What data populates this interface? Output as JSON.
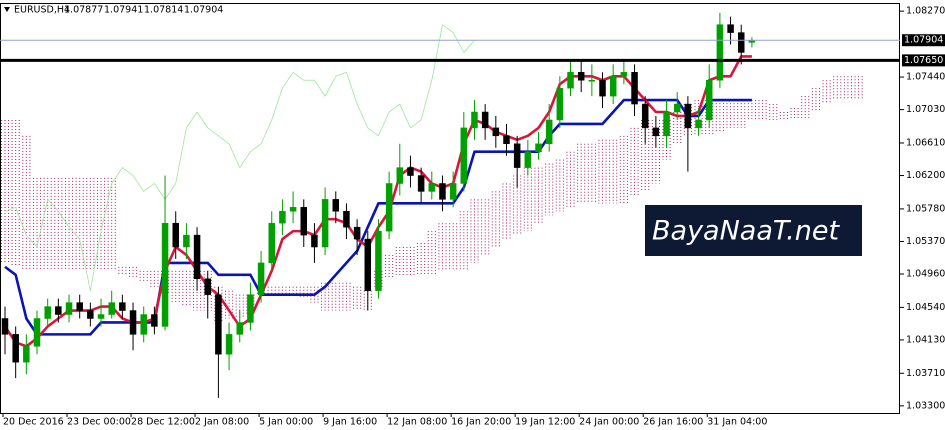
{
  "chart_data": {
    "type": "candlestick",
    "title": "EURUSD,H4",
    "categories": [
      "20 Dec 2016",
      null,
      null,
      null,
      null,
      null,
      "23 Dec 00:00",
      null,
      null,
      null,
      null,
      null,
      "28 Dec 12:00",
      null,
      null,
      null,
      null,
      null,
      "2 Jan 08:00",
      null,
      null,
      null,
      null,
      null,
      "5 Jan 00:00",
      null,
      null,
      null,
      null,
      null,
      "9 Jan 16:00",
      null,
      null,
      null,
      null,
      null,
      "12 Jan 08:00",
      null,
      null,
      null,
      null,
      null,
      "16 Jan 20:00",
      null,
      null,
      null,
      null,
      null,
      "19 Jan 12:00",
      null,
      null,
      null,
      null,
      null,
      "24 Jan 00:00",
      null,
      null,
      null,
      null,
      null,
      "26 Jan 16:00",
      null,
      null,
      null,
      null,
      null,
      "31 Jan 04:00",
      null,
      null,
      null,
      null,
      null,
      null,
      null,
      null,
      null,
      null,
      null,
      null,
      null,
      null
    ],
    "open": [
      1.044,
      1.042,
      1.0385,
      1.0405,
      1.044,
      1.0455,
      1.0445,
      1.046,
      1.045,
      1.044,
      1.0445,
      1.046,
      1.045,
      1.042,
      1.0445,
      1.043,
      1.056,
      1.053,
      1.0545,
      1.049,
      1.047,
      1.0395,
      1.042,
      1.0435,
      1.047,
      1.051,
      1.056,
      1.0575,
      1.058,
      1.0545,
      1.053,
      1.059,
      1.0575,
      1.0555,
      1.054,
      1.0475,
      1.055,
      1.061,
      1.063,
      1.062,
      1.06,
      1.061,
      1.059,
      1.061,
      1.068,
      1.07,
      1.068,
      1.067,
      1.066,
      1.063,
      1.065,
      1.066,
      1.069,
      1.073,
      1.075,
      1.074,
      1.074,
      1.072,
      1.0745,
      1.075,
      1.071,
      1.068,
      1.067,
      1.07,
      1.071,
      1.068,
      1.069,
      1.074,
      1.081,
      1.08,
      1.07877,
      null,
      null,
      null,
      null,
      null,
      null,
      null,
      null,
      null,
      null
    ],
    "high": [
      1.0455,
      1.043,
      1.042,
      1.045,
      1.0465,
      1.0465,
      1.047,
      1.047,
      1.046,
      1.0465,
      1.0475,
      1.047,
      1.046,
      1.0455,
      1.0455,
      1.062,
      1.0575,
      1.056,
      1.0555,
      1.05,
      1.048,
      1.0435,
      1.045,
      1.0485,
      1.0525,
      1.0575,
      1.059,
      1.06,
      1.059,
      1.056,
      1.0605,
      1.06,
      1.0585,
      1.0565,
      1.055,
      1.0565,
      1.0625,
      1.066,
      1.0645,
      1.063,
      1.0625,
      1.062,
      1.0625,
      1.07,
      1.0715,
      1.071,
      1.0695,
      1.0685,
      1.067,
      1.0665,
      1.0675,
      1.071,
      1.0745,
      1.0765,
      1.0765,
      1.076,
      1.075,
      1.076,
      1.0765,
      1.076,
      1.072,
      1.0695,
      1.0715,
      1.0725,
      1.072,
      1.0705,
      1.076,
      1.0825,
      1.082,
      1.081,
      1.07941,
      null,
      null,
      null,
      null,
      null,
      null,
      null,
      null,
      null,
      null
    ],
    "low": [
      1.0395,
      1.0365,
      1.037,
      1.0395,
      1.043,
      1.0435,
      1.0435,
      1.044,
      1.043,
      1.043,
      1.044,
      1.044,
      1.04,
      1.041,
      1.042,
      1.0425,
      1.0515,
      1.0515,
      1.0475,
      1.044,
      1.034,
      1.0375,
      1.041,
      1.0425,
      1.046,
      1.05,
      1.0545,
      1.056,
      1.053,
      1.051,
      1.052,
      1.056,
      1.054,
      1.052,
      1.045,
      1.0465,
      1.054,
      1.0595,
      1.0605,
      1.0585,
      1.059,
      1.0575,
      1.058,
      1.06,
      1.0665,
      1.0665,
      1.0655,
      1.0645,
      1.0605,
      1.062,
      1.064,
      1.065,
      1.068,
      1.072,
      1.0725,
      1.072,
      1.0705,
      1.071,
      1.0735,
      1.0695,
      1.066,
      1.0655,
      1.0655,
      1.069,
      1.0625,
      1.067,
      1.068,
      1.073,
      1.0785,
      1.076,
      1.07814,
      null,
      null,
      null,
      null,
      null,
      null,
      null,
      null,
      null,
      null
    ],
    "close": [
      1.042,
      1.0385,
      1.0405,
      1.044,
      1.0455,
      1.0445,
      1.046,
      1.045,
      1.044,
      1.0445,
      1.046,
      1.045,
      1.042,
      1.0445,
      1.043,
      1.056,
      1.053,
      1.0545,
      1.049,
      1.047,
      1.0395,
      1.042,
      1.0435,
      1.047,
      1.051,
      1.056,
      1.0575,
      1.058,
      1.0545,
      1.053,
      1.059,
      1.0575,
      1.0555,
      1.054,
      1.0475,
      1.055,
      1.061,
      1.063,
      1.062,
      1.06,
      1.061,
      1.059,
      1.061,
      1.068,
      1.07,
      1.068,
      1.067,
      1.066,
      1.063,
      1.065,
      1.066,
      1.069,
      1.073,
      1.075,
      1.074,
      1.074,
      1.072,
      1.0745,
      1.075,
      1.071,
      1.068,
      1.067,
      1.07,
      1.071,
      1.068,
      1.069,
      1.074,
      1.081,
      1.08,
      1.0775,
      1.07904,
      null,
      null,
      null,
      null,
      null,
      null,
      null,
      null,
      null,
      null
    ],
    "up_color": "#00a000",
    "down_color": "#000000",
    "lines": [
      {
        "color": "#9be89b",
        "width": 0.8,
        "values": [
          1.0575,
          1.058,
          1.0545,
          1.053,
          1.059,
          1.0575,
          1.0555,
          1.054,
          1.0475,
          1.055,
          1.061,
          1.063,
          1.062,
          1.06,
          1.061,
          1.059,
          1.061,
          1.068,
          1.07,
          1.068,
          1.067,
          1.066,
          1.063,
          1.065,
          1.066,
          1.069,
          1.073,
          1.075,
          1.074,
          1.074,
          1.072,
          1.0745,
          1.075,
          1.071,
          1.068,
          1.067,
          1.07,
          1.071,
          1.068,
          1.069,
          1.074,
          1.081,
          1.08,
          1.0775,
          1.07904,
          null,
          null,
          null,
          null,
          null,
          null,
          null,
          null,
          null,
          null,
          null,
          null,
          null,
          null,
          null,
          null,
          null,
          null,
          null,
          null,
          null,
          null,
          null,
          null,
          null,
          null,
          null,
          null,
          null,
          null,
          null,
          null,
          null,
          null,
          null,
          null
        ]
      },
      {
        "color": "#0a14b4",
        "width": 2.6,
        "values": [
          1.0505,
          1.0495,
          1.044,
          1.042,
          1.042,
          1.042,
          1.042,
          1.042,
          1.042,
          1.0435,
          1.0435,
          1.0435,
          1.0435,
          1.0435,
          1.0435,
          1.051,
          1.051,
          1.051,
          1.051,
          1.051,
          1.0495,
          1.0495,
          1.0495,
          1.0495,
          1.047,
          1.047,
          1.047,
          1.047,
          1.047,
          1.047,
          1.048,
          1.0495,
          1.051,
          1.0525,
          1.0555,
          1.0585,
          1.0585,
          1.0585,
          1.0585,
          1.0585,
          1.0585,
          1.0585,
          1.0585,
          1.0605,
          1.065,
          1.065,
          1.065,
          1.065,
          1.065,
          1.065,
          1.065,
          1.067,
          1.0685,
          1.0685,
          1.0685,
          1.0685,
          1.0685,
          1.07,
          1.0715,
          1.0715,
          1.0715,
          1.0715,
          1.0715,
          1.0715,
          1.0695,
          1.0695,
          1.0715,
          1.0715,
          1.0715,
          1.0715,
          1.0715,
          null,
          null,
          null,
          null,
          null,
          null,
          null,
          null,
          null,
          null
        ]
      },
      {
        "color": "#dc143c",
        "width": 2.6,
        "values": [
          1.043,
          1.041,
          1.0405,
          1.0415,
          1.043,
          1.044,
          1.045,
          1.045,
          1.045,
          1.0455,
          1.0455,
          1.044,
          1.0435,
          1.0435,
          1.044,
          1.05,
          1.053,
          1.052,
          1.05,
          1.048,
          1.047,
          1.045,
          1.043,
          1.044,
          1.047,
          1.05,
          1.054,
          1.055,
          1.055,
          1.0545,
          1.0565,
          1.0565,
          1.056,
          1.054,
          1.053,
          1.0555,
          1.0575,
          1.062,
          1.063,
          1.0625,
          1.061,
          1.0605,
          1.061,
          1.066,
          1.069,
          1.0685,
          1.0675,
          1.067,
          1.0665,
          1.067,
          1.068,
          1.07,
          1.0735,
          1.0745,
          1.0745,
          1.0745,
          1.074,
          1.0745,
          1.0745,
          1.073,
          1.0715,
          1.07,
          1.07,
          1.0695,
          1.0695,
          1.07,
          1.074,
          1.0745,
          1.0745,
          1.077,
          1.077,
          null,
          null,
          null,
          null,
          null,
          null,
          null,
          null,
          null,
          null
        ]
      }
    ],
    "cloud": {
      "up_color": "#a0206e",
      "down_color": "#c2405a",
      "span_a": [
        1.069,
        1.069,
        1.067,
        1.0617,
        1.0617,
        1.0617,
        1.0617,
        1.0617,
        1.0617,
        1.0617,
        1.0617,
        1.0505,
        1.0505,
        1.05,
        1.05,
        1.05,
        1.05,
        1.05,
        1.05,
        1.05,
        1.048,
        1.0475,
        1.047,
        1.047,
        1.048,
        1.048,
        1.048,
        1.048,
        1.048,
        1.048,
        1.0485,
        1.0485,
        1.0485,
        1.048,
        1.0475,
        1.05,
        1.052,
        1.053,
        1.053,
        1.0535,
        1.055,
        1.056,
        1.056,
        1.0575,
        1.059,
        1.059,
        1.06,
        1.061,
        1.062,
        1.063,
        1.063,
        1.0635,
        1.064,
        1.065,
        1.066,
        1.066,
        1.0665,
        1.0665,
        1.067,
        1.068,
        1.069,
        1.069,
        1.069,
        1.07,
        1.071,
        1.0715,
        1.0715,
        1.0715,
        1.0715,
        1.0715,
        1.0715,
        1.0715,
        1.071,
        1.07,
        1.0705,
        1.072,
        1.073,
        1.074,
        1.0745,
        1.0745,
        1.0745
      ],
      "span_b": [
        1.051,
        1.0505,
        1.05,
        1.05,
        1.05,
        1.05,
        1.05,
        1.05,
        1.05,
        1.05,
        1.05,
        1.0495,
        1.049,
        1.0485,
        1.048,
        1.047,
        1.046,
        1.0455,
        1.045,
        1.045,
        1.0435,
        1.044,
        1.044,
        1.0445,
        1.047,
        1.047,
        1.047,
        1.047,
        1.0465,
        1.046,
        1.045,
        1.045,
        1.045,
        1.045,
        1.045,
        1.048,
        1.049,
        1.0495,
        1.0495,
        1.0495,
        1.0495,
        1.05,
        1.05,
        1.05,
        1.051,
        1.052,
        1.053,
        1.054,
        1.0545,
        1.055,
        1.056,
        1.057,
        1.0575,
        1.058,
        1.0585,
        1.0585,
        1.0585,
        1.0585,
        1.0585,
        1.0595,
        1.06,
        1.061,
        1.064,
        1.066,
        1.067,
        1.067,
        1.067,
        1.0675,
        1.068,
        1.068,
        1.069,
        1.069,
        1.069,
        1.069,
        1.069,
        1.069,
        1.07,
        1.071,
        1.0715,
        1.0715,
        1.0715
      ]
    },
    "current_price_color": "#8fa3c8",
    "levels": [
      {
        "value": 1.0765,
        "label": "1.07650"
      }
    ],
    "ylim": [
      1.0321,
      1.0836
    ],
    "yticks": [
      {
        "value": 1.0827,
        "label": "1.08270"
      },
      {
        "value": 1.0744,
        "label": "1.07440"
      },
      {
        "value": 1.0703,
        "label": "1.07030"
      },
      {
        "value": 1.0661,
        "label": "1.06610"
      },
      {
        "value": 1.062,
        "label": "1.06200"
      },
      {
        "value": 1.0578,
        "label": "1.05780"
      },
      {
        "value": 1.0537,
        "label": "1.05370"
      },
      {
        "value": 1.0496,
        "label": "1.04960"
      },
      {
        "value": 1.0454,
        "label": "1.04540"
      },
      {
        "value": 1.0413,
        "label": "1.04130"
      },
      {
        "value": 1.0371,
        "label": "1.03710"
      },
      {
        "value": 1.033,
        "label": "1.03300"
      }
    ],
    "watermark": "BayaNaaT.net"
  }
}
